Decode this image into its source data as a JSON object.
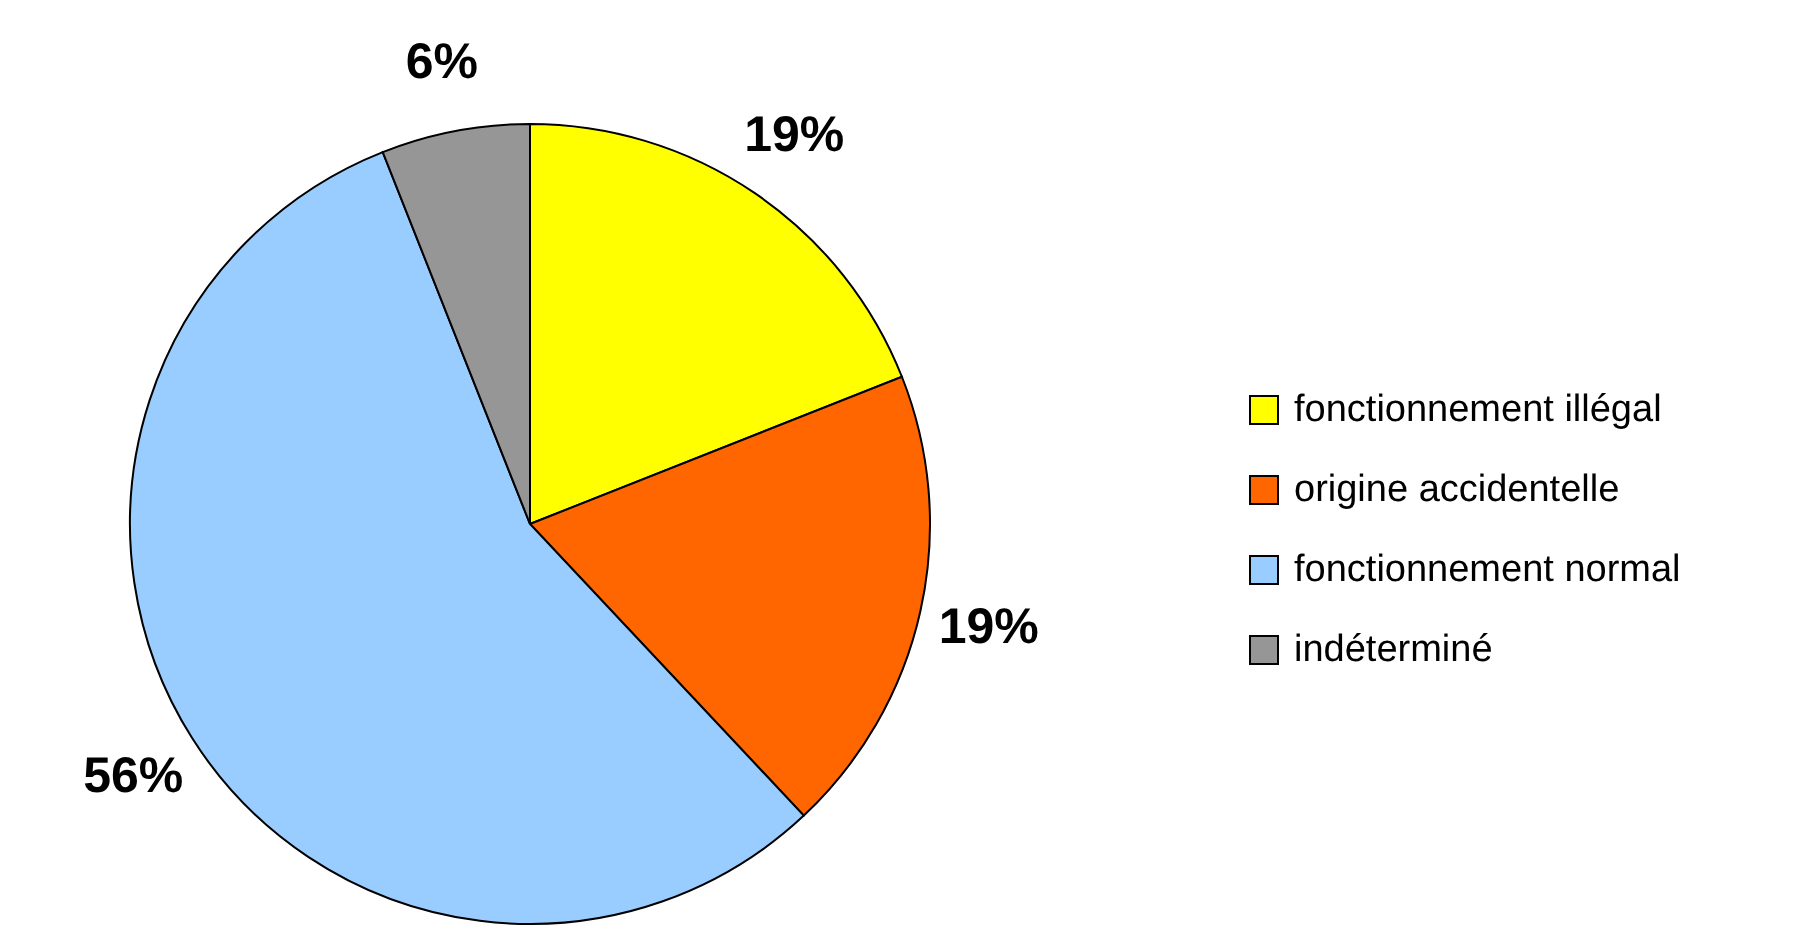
{
  "chart_data": {
    "type": "pie",
    "categories": [
      "fonctionnement illégal",
      "origine accidentelle",
      "fonctionnement normal",
      "indéterminé"
    ],
    "values": [
      19,
      19,
      56,
      6
    ],
    "colors": [
      "#ffff00",
      "#ff6600",
      "#99ccff",
      "#969696"
    ],
    "value_labels": [
      "19%",
      "19%",
      "56%",
      "6%"
    ],
    "legend": "right"
  }
}
